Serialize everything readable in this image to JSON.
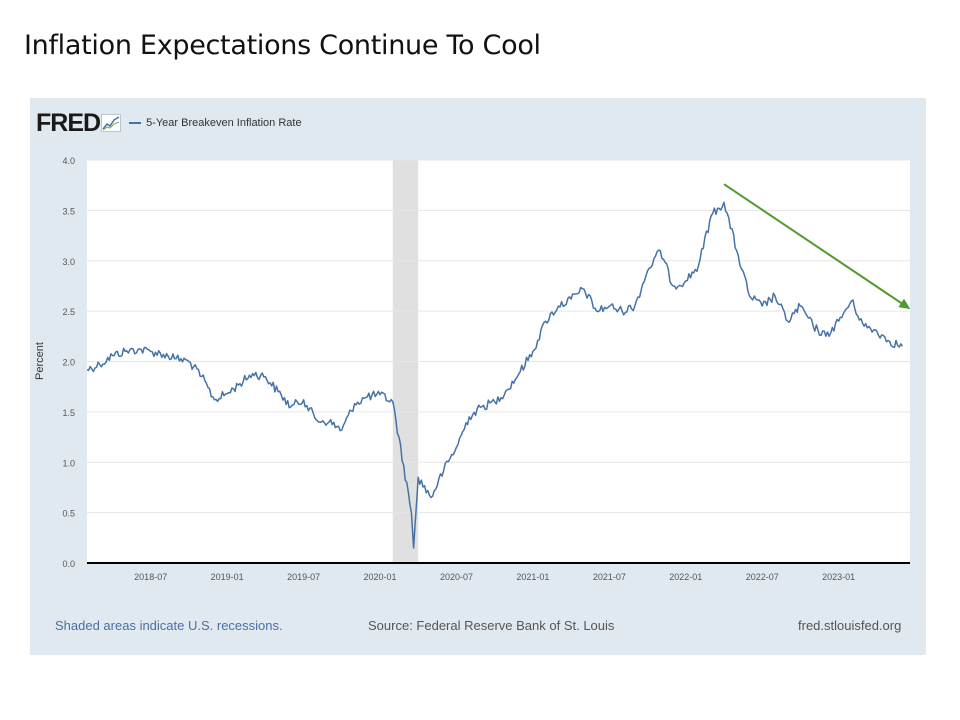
{
  "slide": {
    "title": "Inflation Expectations Continue To Cool"
  },
  "fred": {
    "logo": "FRED",
    "logo_icon": "fred-chart-icon",
    "source": "Source: Federal Reserve Bank of St. Louis",
    "shading_note": "Shaded areas indicate U.S. recessions.",
    "site": "fred.stlouisfed.org"
  },
  "colors": {
    "series": "#4572a7",
    "trend_arrow": "#4f9a2f",
    "recession": "#e0e0e0",
    "panel": "#e1e9f0"
  },
  "chart_data": {
    "type": "line",
    "xlabel": "",
    "ylabel": "Percent",
    "ylim": [
      0,
      4
    ],
    "yticks": [
      "0.0",
      "0.5",
      "1.0",
      "1.5",
      "2.0",
      "2.5",
      "3.0",
      "3.5",
      "4.0"
    ],
    "xlim": [
      "2018-02",
      "2023-06"
    ],
    "xticks": [
      "2018-07",
      "2019-01",
      "2019-07",
      "2020-01",
      "2020-07",
      "2021-01",
      "2021-07",
      "2022-01",
      "2022-07",
      "2023-01"
    ],
    "grid": true,
    "legend": "top-left",
    "recessions": [
      {
        "start": "2020-02",
        "end": "2020-04"
      }
    ],
    "trend_arrow": {
      "from": {
        "x": "2022-04",
        "y": 3.76
      },
      "to": {
        "x": "2023-06",
        "y": 2.52
      }
    },
    "series": [
      {
        "name": "5-Year Breakeven Inflation Rate",
        "x": [
          "2018-02",
          "2018-03",
          "2018-04",
          "2018-05",
          "2018-06",
          "2018-07",
          "2018-08",
          "2018-09",
          "2018-10",
          "2018-11",
          "2018-12",
          "2019-01",
          "2019-02",
          "2019-03",
          "2019-04",
          "2019-05",
          "2019-06",
          "2019-07",
          "2019-08",
          "2019-09",
          "2019-10",
          "2019-11",
          "2019-12",
          "2020-01",
          "2020-02",
          "2020-03-15",
          "2020-03-20",
          "2020-04",
          "2020-05",
          "2020-06",
          "2020-07",
          "2020-08",
          "2020-09",
          "2020-10",
          "2020-11",
          "2020-12",
          "2021-01",
          "2021-02",
          "2021-03",
          "2021-04",
          "2021-05",
          "2021-06",
          "2021-07",
          "2021-08",
          "2021-09",
          "2021-10",
          "2021-11",
          "2021-12",
          "2022-01",
          "2022-02",
          "2022-03",
          "2022-04",
          "2022-05",
          "2022-06",
          "2022-07",
          "2022-08",
          "2022-09",
          "2022-10",
          "2022-11",
          "2022-12",
          "2023-01",
          "2023-02",
          "2023-03",
          "2023-04",
          "2023-05",
          "2023-06"
        ],
        "values": [
          1.92,
          1.97,
          2.06,
          2.1,
          2.12,
          2.1,
          2.07,
          2.03,
          2.0,
          1.85,
          1.62,
          1.68,
          1.78,
          1.88,
          1.85,
          1.7,
          1.55,
          1.62,
          1.42,
          1.4,
          1.32,
          1.58,
          1.65,
          1.67,
          1.6,
          0.5,
          0.15,
          0.85,
          0.65,
          0.92,
          1.15,
          1.45,
          1.55,
          1.6,
          1.72,
          1.9,
          2.1,
          2.4,
          2.55,
          2.62,
          2.72,
          2.5,
          2.55,
          2.5,
          2.55,
          2.9,
          3.1,
          2.75,
          2.8,
          2.95,
          3.45,
          3.58,
          3.1,
          2.65,
          2.55,
          2.65,
          2.4,
          2.55,
          2.35,
          2.25,
          2.4,
          2.6,
          2.35,
          2.3,
          2.2,
          2.15
        ]
      }
    ]
  }
}
